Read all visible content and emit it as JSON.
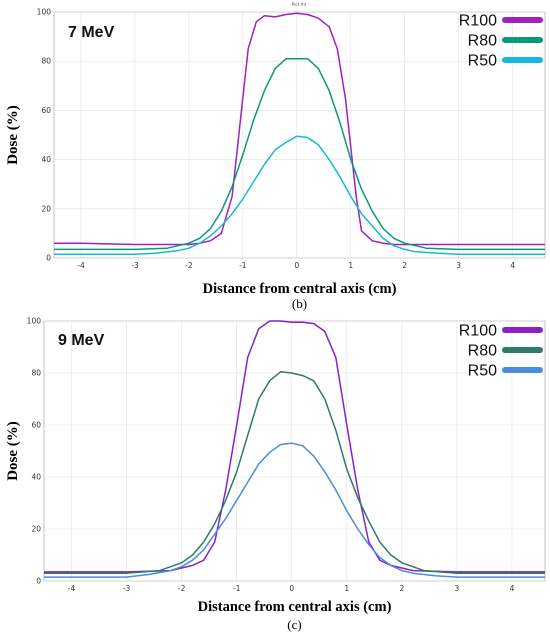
{
  "chart_data": [
    {
      "type": "line",
      "title": "7 MeV",
      "header": "Plot #4",
      "caption": "(b)",
      "xlabel": "Distance from central axis (cm)",
      "ylabel": "Dose (%)",
      "xlim": [
        -4.5,
        4.6
      ],
      "ylim": [
        0,
        100
      ],
      "xticks": [
        -4,
        -3,
        -2,
        -1,
        0,
        1,
        2,
        3,
        4
      ],
      "yticks": [
        0,
        20,
        40,
        60,
        80,
        100
      ],
      "legend": "top-right",
      "grid": true,
      "series": [
        {
          "name": "R100",
          "color": "#a020c0",
          "x": [
            -4.5,
            -4,
            -3,
            -2.2,
            -2,
            -1.8,
            -1.6,
            -1.4,
            -1.2,
            -1.1,
            -1,
            -0.9,
            -0.75,
            -0.6,
            -0.4,
            -0.2,
            0,
            0.2,
            0.4,
            0.6,
            0.75,
            0.9,
            1,
            1.1,
            1.2,
            1.4,
            1.6,
            1.8,
            2,
            2.2,
            3,
            4,
            4.6
          ],
          "y": [
            6,
            6,
            5.5,
            5.5,
            5.5,
            6,
            7,
            10,
            25,
            45,
            65,
            85,
            96,
            98.5,
            98,
            99,
            99.5,
            99,
            97.5,
            94,
            85,
            65,
            45,
            25,
            11,
            7,
            6,
            5.5,
            5.5,
            5.5,
            5.5,
            5.5,
            5.5
          ]
        },
        {
          "name": "R80",
          "color": "#0a9a78",
          "x": [
            -4.5,
            -4,
            -3,
            -2.4,
            -2,
            -1.8,
            -1.6,
            -1.4,
            -1.2,
            -1,
            -0.8,
            -0.6,
            -0.4,
            -0.2,
            0,
            0.2,
            0.4,
            0.6,
            0.8,
            1,
            1.2,
            1.4,
            1.6,
            1.8,
            2,
            2.4,
            3,
            4,
            4.6
          ],
          "y": [
            3.5,
            3.5,
            3.5,
            4,
            6,
            8,
            12,
            19,
            29,
            42,
            56,
            68,
            77,
            81,
            81,
            81,
            77,
            68,
            55,
            40,
            28,
            19,
            12,
            8,
            6,
            4,
            3.5,
            3.5,
            3.5
          ]
        },
        {
          "name": "R50",
          "color": "#18b8d8",
          "x": [
            -4.5,
            -4,
            -3,
            -2.6,
            -2.2,
            -2,
            -1.8,
            -1.6,
            -1.4,
            -1.2,
            -1,
            -0.8,
            -0.6,
            -0.4,
            -0.2,
            0,
            0.2,
            0.4,
            0.6,
            0.8,
            1,
            1.2,
            1.4,
            1.6,
            1.8,
            2,
            2.2,
            2.6,
            3,
            4,
            4.6
          ],
          "y": [
            1.5,
            1.5,
            1.5,
            2,
            3,
            4,
            6,
            9,
            13,
            18,
            24,
            31,
            38,
            44,
            47,
            49.5,
            49,
            46,
            40,
            33,
            25,
            18,
            13,
            8,
            5,
            3.5,
            2.5,
            2,
            1.5,
            1.5,
            1.5
          ]
        }
      ]
    },
    {
      "type": "line",
      "title": "9 MeV",
      "caption": "(c)",
      "xlabel": "Distance from central axis (cm)",
      "ylabel": "Dose (%)",
      "xlim": [
        -4.5,
        4.6
      ],
      "ylim": [
        0,
        100
      ],
      "xticks": [
        -4,
        -3,
        -2,
        -1,
        0,
        1,
        2,
        3,
        4
      ],
      "yticks": [
        0,
        20,
        40,
        60,
        80,
        100
      ],
      "legend": "top-right",
      "grid": true,
      "series": [
        {
          "name": "R100",
          "color": "#8a20c8",
          "x": [
            -4.5,
            -4,
            -3,
            -2.2,
            -2,
            -1.8,
            -1.6,
            -1.4,
            -1.2,
            -1,
            -0.8,
            -0.6,
            -0.4,
            -0.2,
            0,
            0.2,
            0.4,
            0.6,
            0.8,
            1,
            1.2,
            1.4,
            1.6,
            1.8,
            2,
            2.2,
            3,
            4,
            4.6
          ],
          "y": [
            3.5,
            3.5,
            3.5,
            4,
            5,
            6,
            8,
            15,
            35,
            60,
            86,
            97,
            100,
            100,
            99.5,
            99.5,
            99,
            96,
            86,
            60,
            35,
            15,
            8,
            6,
            5,
            4,
            3.5,
            3.5,
            3.5
          ]
        },
        {
          "name": "R80",
          "color": "#2e7b68",
          "x": [
            -4.5,
            -4,
            -3,
            -2.4,
            -2,
            -1.8,
            -1.6,
            -1.4,
            -1.2,
            -1,
            -0.8,
            -0.6,
            -0.4,
            -0.2,
            0,
            0.2,
            0.4,
            0.6,
            0.8,
            1,
            1.2,
            1.4,
            1.6,
            1.8,
            2,
            2.4,
            3,
            4,
            4.6
          ],
          "y": [
            3,
            3,
            3,
            4,
            7,
            10,
            15,
            22,
            31,
            42,
            56,
            70,
            77,
            80.5,
            80,
            79,
            77,
            70,
            58,
            43,
            32,
            23,
            15,
            10,
            7,
            4,
            3,
            3,
            3
          ]
        },
        {
          "name": "R50",
          "color": "#4a8ce0",
          "x": [
            -4.5,
            -4,
            -3,
            -2.6,
            -2.2,
            -2,
            -1.8,
            -1.6,
            -1.4,
            -1.2,
            -1,
            -0.8,
            -0.6,
            -0.4,
            -0.2,
            0,
            0.2,
            0.4,
            0.6,
            0.8,
            1,
            1.2,
            1.4,
            1.6,
            1.8,
            2,
            2.2,
            2.6,
            3,
            4,
            4.6
          ],
          "y": [
            1.5,
            1.5,
            1.5,
            2.5,
            4,
            5.5,
            8,
            12,
            18,
            24,
            31,
            38,
            45,
            49.5,
            52.5,
            53,
            52,
            48,
            42,
            35,
            27,
            20,
            14,
            9,
            6,
            4,
            3,
            2,
            1.5,
            1.5,
            1.5
          ]
        }
      ]
    }
  ]
}
